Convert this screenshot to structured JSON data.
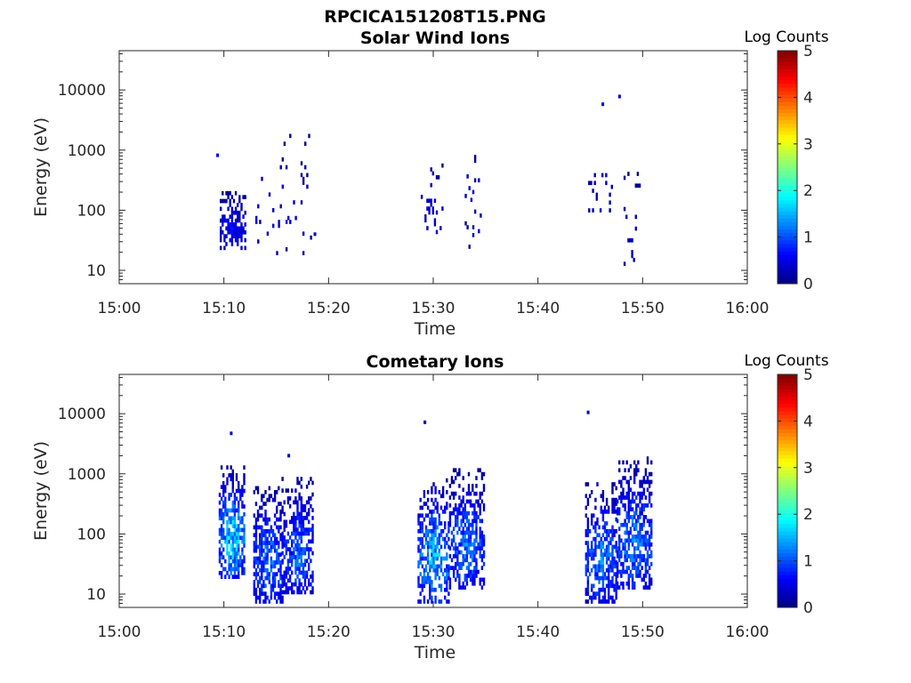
{
  "figure_title": "RPCICA151208T15.PNG",
  "colormap": "jet",
  "chart_data": [
    {
      "type": "heatmap",
      "title": "Solar Wind Ions",
      "xlabel": "Time",
      "ylabel": "Energy (eV)",
      "y_scale": "log",
      "ylim": [
        6,
        45000
      ],
      "xlim": [
        "15:00",
        "16:00"
      ],
      "x_ticks": [
        "15:00",
        "15:10",
        "15:20",
        "15:30",
        "15:40",
        "15:50",
        "16:00"
      ],
      "y_ticks": [
        {
          "value": 10,
          "label": "10"
        },
        {
          "value": 100,
          "label": "100"
        },
        {
          "value": 1000,
          "label": "1000"
        },
        {
          "value": 10000,
          "label": "10000"
        }
      ],
      "colorbar": {
        "label": "Log Counts",
        "range": [
          0,
          5
        ],
        "ticks": [
          "0",
          "1",
          "2",
          "3",
          "4",
          "5"
        ]
      },
      "bursts": [
        {
          "t_start": 9.6,
          "t_end": 12.0,
          "e_low": 22,
          "e_high": 200,
          "count_max": 0.7,
          "density": 0.5,
          "seed": 1
        },
        {
          "t_start": 13.0,
          "t_end": 18.5,
          "e_low": 18,
          "e_high": 1700,
          "count_max": 0.5,
          "density": 0.05,
          "seed": 2
        },
        {
          "t_start": 28.8,
          "t_end": 30.8,
          "e_low": 30,
          "e_high": 650,
          "count_max": 0.5,
          "density": 0.12,
          "seed": 3
        },
        {
          "t_start": 33.0,
          "t_end": 34.5,
          "e_low": 23,
          "e_high": 1800,
          "count_max": 0.5,
          "density": 0.08,
          "seed": 4
        },
        {
          "t_start": 44.8,
          "t_end": 47.0,
          "e_low": 80,
          "e_high": 650,
          "count_max": 0.5,
          "density": 0.08,
          "seed": 5
        },
        {
          "t_start": 48.0,
          "t_end": 49.8,
          "e_low": 12,
          "e_high": 500,
          "count_max": 0.5,
          "density": 0.08,
          "seed": 6
        }
      ],
      "points": [
        {
          "t": 46.2,
          "e": 5800,
          "v": 0.4
        },
        {
          "t": 47.8,
          "e": 7800,
          "v": 0.4
        },
        {
          "t": 9.4,
          "e": 820,
          "v": 0.4
        },
        {
          "t": 18.7,
          "e": 40,
          "v": 0.4
        }
      ]
    },
    {
      "type": "heatmap",
      "title": "Cometary Ions",
      "xlabel": "Time",
      "ylabel": "Energy (eV)",
      "y_scale": "log",
      "ylim": [
        6,
        45000
      ],
      "xlim": [
        "15:00",
        "16:00"
      ],
      "x_ticks": [
        "15:00",
        "15:10",
        "15:20",
        "15:30",
        "15:40",
        "15:50",
        "16:00"
      ],
      "y_ticks": [
        {
          "value": 10,
          "label": "10"
        },
        {
          "value": 100,
          "label": "100"
        },
        {
          "value": 1000,
          "label": "1000"
        },
        {
          "value": 10000,
          "label": "10000"
        }
      ],
      "colorbar": {
        "label": "Log Counts",
        "range": [
          0,
          5
        ],
        "ticks": [
          "0",
          "1",
          "2",
          "3",
          "4",
          "5"
        ]
      },
      "bursts": [
        {
          "t_start": 9.5,
          "t_end": 12.0,
          "e_low": 18,
          "e_high": 1200,
          "count_max": 2.0,
          "density": 0.6,
          "seed": 11
        },
        {
          "t_start": 12.8,
          "t_end": 15.5,
          "e_low": 7,
          "e_high": 600,
          "count_max": 1.4,
          "density": 0.55,
          "seed": 12
        },
        {
          "t_start": 15.5,
          "t_end": 18.5,
          "e_low": 10,
          "e_high": 800,
          "count_max": 1.3,
          "density": 0.55,
          "seed": 13
        },
        {
          "t_start": 28.5,
          "t_end": 31.5,
          "e_low": 7,
          "e_high": 800,
          "count_max": 1.8,
          "density": 0.55,
          "seed": 14
        },
        {
          "t_start": 31.5,
          "t_end": 34.8,
          "e_low": 12,
          "e_high": 1100,
          "count_max": 1.4,
          "density": 0.55,
          "seed": 15
        },
        {
          "t_start": 44.5,
          "t_end": 47.5,
          "e_low": 7,
          "e_high": 700,
          "count_max": 1.5,
          "density": 0.55,
          "seed": 16
        },
        {
          "t_start": 47.5,
          "t_end": 50.8,
          "e_low": 12,
          "e_high": 1700,
          "count_max": 1.5,
          "density": 0.55,
          "seed": 17
        }
      ],
      "points": [
        {
          "t": 10.7,
          "e": 4700,
          "v": 0.4
        },
        {
          "t": 16.2,
          "e": 2000,
          "v": 0.4
        },
        {
          "t": 29.2,
          "e": 7200,
          "v": 0.4
        },
        {
          "t": 44.8,
          "e": 10500,
          "v": 0.4
        }
      ]
    }
  ]
}
